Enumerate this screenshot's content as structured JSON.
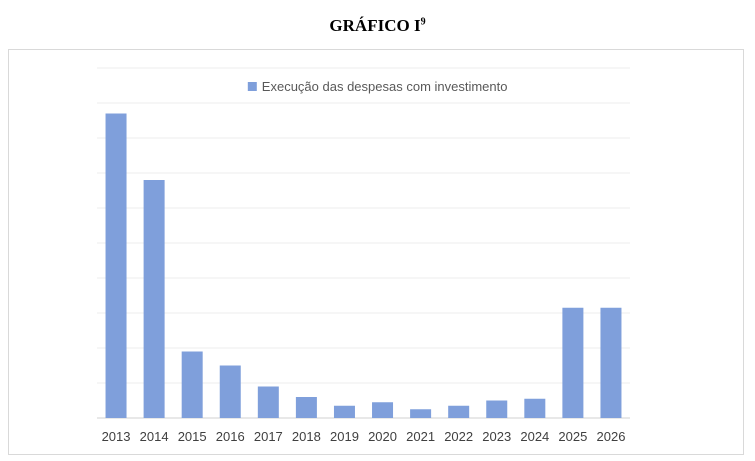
{
  "title": {
    "text": "GRÁFICO I",
    "superscript": "9"
  },
  "colors": {
    "bar": "#7f9fdb",
    "grid": "#ececec",
    "axis": "#d0d0d0",
    "frame": "#d9d9d9"
  },
  "chart_data": {
    "type": "bar",
    "categories": [
      "2013",
      "2014",
      "2015",
      "2016",
      "2017",
      "2018",
      "2019",
      "2020",
      "2021",
      "2022",
      "2023",
      "2024",
      "2025",
      "2026"
    ],
    "series": [
      {
        "name": "Execução das despesas com investimento",
        "values": [
          87,
          68,
          19,
          15,
          9,
          6,
          3.5,
          4.5,
          2.5,
          3.5,
          5,
          5.5,
          31.5,
          31.5
        ]
      }
    ],
    "ylim": [
      0,
      100
    ],
    "y_tick_labels_shown": false,
    "grid": true,
    "legend_position": "top-center",
    "xlabel": "",
    "ylabel": ""
  }
}
